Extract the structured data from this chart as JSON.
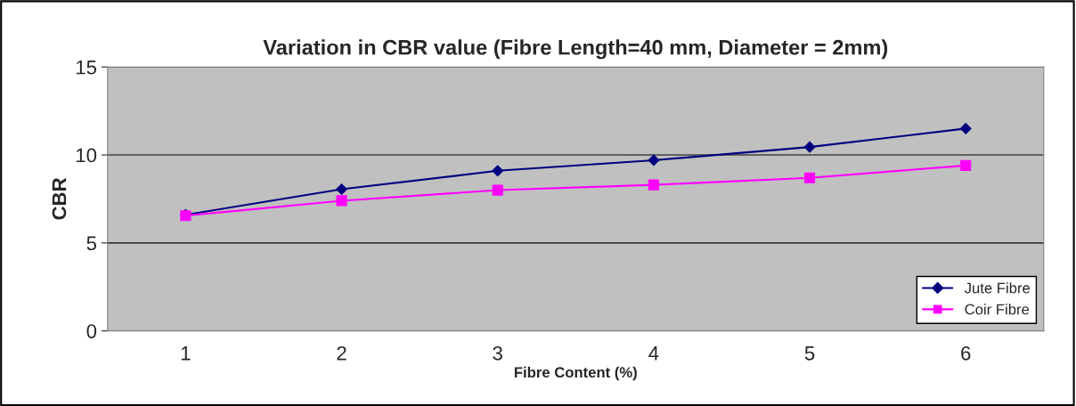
{
  "chart_data": {
    "type": "line",
    "title": "Variation in CBR value (Fibre Length=40 mm, Diameter = 2mm)",
    "xlabel": "Fibre Content (%)",
    "ylabel": "CBR",
    "categories": [
      "1",
      "2",
      "3",
      "4",
      "5",
      "6"
    ],
    "series": [
      {
        "name": "Jute Fibre",
        "color": "#000080",
        "marker": "diamond",
        "values": [
          6.6,
          8.05,
          9.1,
          9.7,
          10.45,
          11.5
        ]
      },
      {
        "name": "Coir Fibre",
        "color": "#ff00ff",
        "marker": "square",
        "values": [
          6.55,
          7.4,
          8.0,
          8.3,
          8.7,
          9.4
        ]
      }
    ],
    "ylim": [
      0,
      15
    ],
    "yticks": [
      0,
      5,
      10,
      15
    ],
    "grid": "y",
    "legend": "bottom right",
    "line_style": "solid"
  }
}
